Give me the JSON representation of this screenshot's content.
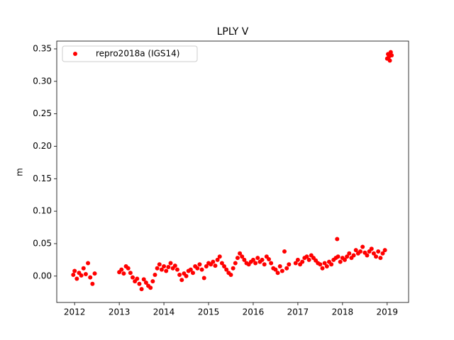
{
  "chart_data": {
    "type": "scatter",
    "title": "LPLY V",
    "y_label": "m",
    "xlim": [
      2011.6,
      2019.48
    ],
    "xticks": [
      2012,
      2013,
      2014,
      2015,
      2016,
      2017,
      2018,
      2019
    ],
    "ylim": [
      -0.0406,
      0.362
    ],
    "yticks": [
      {
        "value": 0,
        "label": "0.00"
      },
      0.05,
      {
        "value": 0.1,
        "label": "0.10"
      },
      0.15,
      {
        "value": 0.2,
        "label": "0.20"
      },
      0.25,
      {
        "value": 0.3,
        "label": "0.30"
      },
      0.35
    ],
    "legend": "upper left",
    "series": [
      {
        "name": "repro2018a (IGS14)",
        "color": "#ff0000",
        "x": [
          2011.97,
          2012.0,
          2012.05,
          2012.1,
          2012.15,
          2012.2,
          2012.25,
          2012.3,
          2012.35,
          2012.4,
          2012.45,
          2013.0,
          2013.05,
          2013.1,
          2013.15,
          2013.2,
          2013.25,
          2013.3,
          2013.35,
          2013.4,
          2013.45,
          2013.5,
          2013.55,
          2013.6,
          2013.65,
          2013.7,
          2013.75,
          2013.8,
          2013.85,
          2013.9,
          2013.95,
          2014.0,
          2014.05,
          2014.1,
          2014.15,
          2014.2,
          2014.25,
          2014.3,
          2014.35,
          2014.4,
          2014.45,
          2014.5,
          2014.55,
          2014.6,
          2014.65,
          2014.7,
          2014.75,
          2014.8,
          2014.85,
          2014.9,
          2014.95,
          2015.0,
          2015.05,
          2015.1,
          2015.15,
          2015.2,
          2015.25,
          2015.3,
          2015.35,
          2015.4,
          2015.45,
          2015.5,
          2015.55,
          2015.6,
          2015.65,
          2015.7,
          2015.75,
          2015.8,
          2015.85,
          2015.9,
          2015.95,
          2016.0,
          2016.05,
          2016.1,
          2016.15,
          2016.2,
          2016.25,
          2016.3,
          2016.35,
          2016.4,
          2016.45,
          2016.5,
          2016.55,
          2016.6,
          2016.65,
          2016.7,
          2016.75,
          2016.8,
          2016.95,
          2017.0,
          2017.05,
          2017.1,
          2017.15,
          2017.2,
          2017.25,
          2017.3,
          2017.35,
          2017.4,
          2017.45,
          2017.5,
          2017.55,
          2017.6,
          2017.65,
          2017.7,
          2017.75,
          2017.8,
          2017.85,
          2017.88,
          2017.9,
          2017.95,
          2018.0,
          2018.05,
          2018.1,
          2018.15,
          2018.2,
          2018.25,
          2018.3,
          2018.35,
          2018.4,
          2018.45,
          2018.5,
          2018.55,
          2018.6,
          2018.65,
          2018.7,
          2018.75,
          2018.8,
          2018.85,
          2018.9,
          2018.95,
          2019.0,
          2019.02,
          2019.04,
          2019.06,
          2019.08,
          2019.1
        ],
        "values": [
          0.002,
          0.008,
          -0.004,
          0.005,
          0.001,
          0.012,
          0.003,
          0.02,
          -0.002,
          -0.012,
          0.004,
          0.006,
          0.01,
          0.004,
          0.015,
          0.012,
          0.005,
          -0.002,
          -0.008,
          -0.004,
          -0.012,
          -0.02,
          -0.005,
          -0.01,
          -0.015,
          -0.018,
          -0.008,
          0.002,
          0.012,
          0.018,
          0.01,
          0.015,
          0.008,
          0.014,
          0.02,
          0.012,
          0.016,
          0.01,
          0.002,
          -0.006,
          0.004,
          0.0,
          0.008,
          0.01,
          0.005,
          0.015,
          0.012,
          0.018,
          0.01,
          -0.003,
          0.015,
          0.02,
          0.018,
          0.022,
          0.016,
          0.025,
          0.03,
          0.02,
          0.015,
          0.01,
          0.005,
          0.002,
          0.012,
          0.02,
          0.028,
          0.035,
          0.03,
          0.025,
          0.02,
          0.018,
          0.022,
          0.025,
          0.02,
          0.028,
          0.022,
          0.025,
          0.018,
          0.03,
          0.026,
          0.02,
          0.012,
          0.01,
          0.005,
          0.015,
          0.008,
          0.038,
          0.012,
          0.018,
          0.02,
          0.025,
          0.018,
          0.022,
          0.028,
          0.03,
          0.025,
          0.032,
          0.028,
          0.024,
          0.02,
          0.018,
          0.012,
          0.02,
          0.015,
          0.022,
          0.018,
          0.025,
          0.028,
          0.057,
          0.03,
          0.022,
          0.028,
          0.025,
          0.03,
          0.035,
          0.028,
          0.032,
          0.04,
          0.035,
          0.038,
          0.045,
          0.036,
          0.032,
          0.038,
          0.042,
          0.035,
          0.03,
          0.038,
          0.028,
          0.035,
          0.04,
          0.335,
          0.342,
          0.338,
          0.332,
          0.345,
          0.34
        ]
      }
    ]
  }
}
